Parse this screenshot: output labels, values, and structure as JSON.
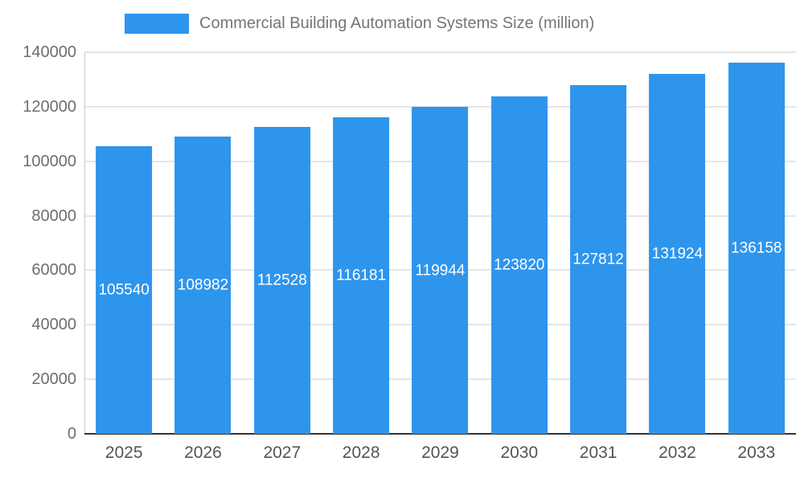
{
  "chart_data": {
    "type": "bar",
    "title": "Commercial Building Automation Systems Size (million)",
    "categories": [
      "2025",
      "2026",
      "2027",
      "2028",
      "2029",
      "2030",
      "2031",
      "2032",
      "2033"
    ],
    "values": [
      105540,
      108982,
      112528,
      116181,
      119944,
      123820,
      127812,
      131924,
      136158
    ],
    "xlabel": "",
    "ylabel": "",
    "ylim": [
      0,
      140000
    ],
    "yticks": [
      0,
      20000,
      40000,
      60000,
      80000,
      100000,
      120000,
      140000
    ],
    "grid": true,
    "legend_position": "top",
    "colors": {
      "bar": "#2E95EC",
      "bar_label": "#ffffff",
      "axis_text": "#6e6e6e",
      "xaxis_text": "#545454",
      "title_text": "#757575",
      "gridline": "#cccccc",
      "baseline": "#333333"
    }
  }
}
